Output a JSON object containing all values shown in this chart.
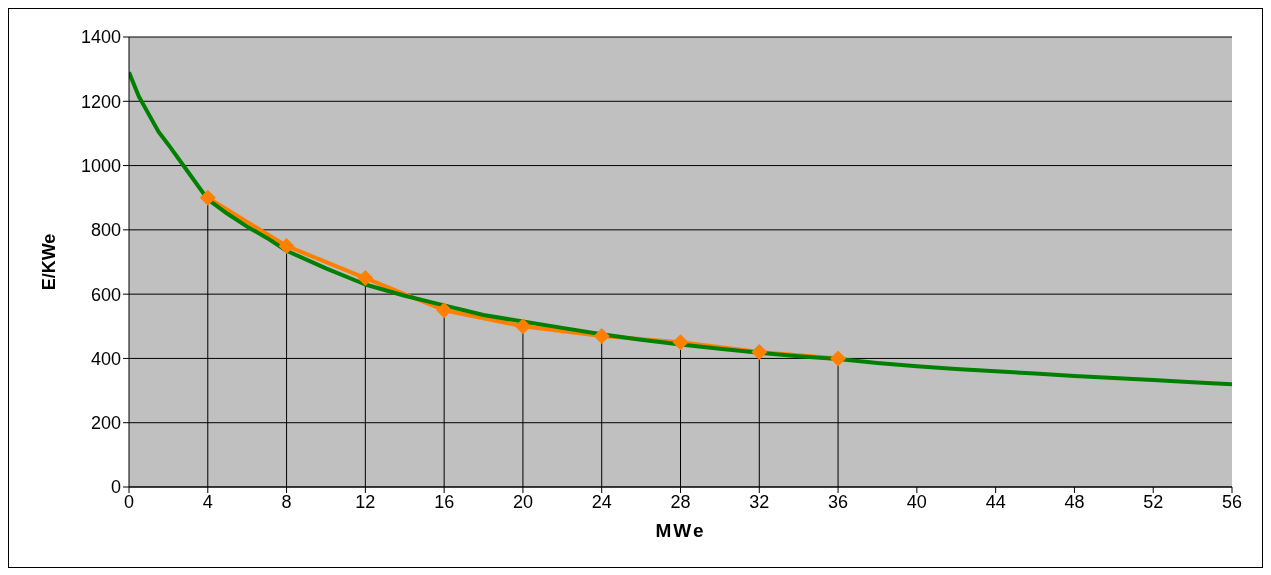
{
  "chart_data": {
    "type": "line",
    "xlabel": "MWe",
    "ylabel": "E/KWe",
    "xlim": [
      0,
      56
    ],
    "xticks": [
      0,
      4,
      8,
      12,
      16,
      20,
      24,
      28,
      32,
      36,
      40,
      44,
      48,
      52,
      56
    ],
    "ylim": [
      0,
      1400
    ],
    "yticks": [
      0,
      200,
      400,
      600,
      800,
      1000,
      1200,
      1400
    ],
    "grid": "y",
    "series": [
      {
        "color": "#ff7f00",
        "marker": "diamond",
        "x": [
          4,
          8,
          12,
          16,
          20,
          24,
          28,
          32,
          36
        ],
        "values": [
          900,
          750,
          650,
          550,
          500,
          470,
          450,
          420,
          400
        ],
        "errors": [
          [
            0,
            900
          ],
          [
            0,
            750
          ],
          [
            0,
            650
          ],
          [
            0,
            550
          ],
          [
            0,
            500
          ],
          [
            0,
            470
          ],
          [
            0,
            450
          ],
          [
            0,
            420
          ],
          [
            0,
            400
          ]
        ]
      },
      {
        "color": "#008000",
        "marker": "none",
        "x": [
          0,
          0.5,
          1,
          1.5,
          2,
          3,
          4,
          5,
          6,
          7,
          8,
          10,
          12,
          14,
          16,
          18,
          20,
          22,
          24,
          26,
          28,
          30,
          32,
          34,
          36,
          38,
          40,
          42,
          44,
          46,
          48,
          50,
          52,
          54,
          56
        ],
        "values": [
          1290,
          1215,
          1160,
          1105,
          1065,
          980,
          895,
          850,
          810,
          775,
          735,
          680,
          630,
          595,
          565,
          535,
          515,
          495,
          475,
          458,
          443,
          430,
          418,
          407,
          398,
          386,
          376,
          367,
          360,
          353,
          345,
          339,
          333,
          326,
          320
        ]
      }
    ]
  }
}
